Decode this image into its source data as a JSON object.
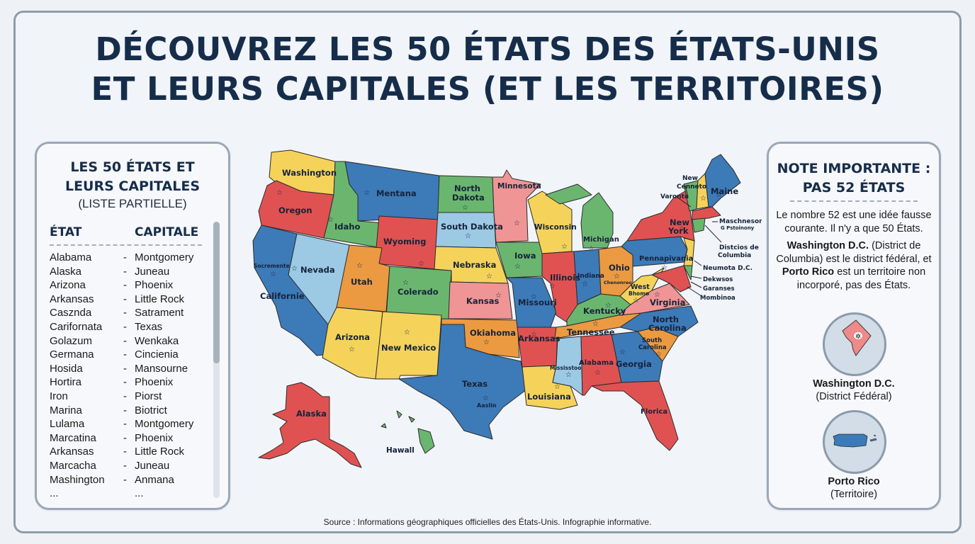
{
  "title": {
    "line1": "DÉCOUVREZ LES 50 ÉTATS DES ÉTATS-UNIS",
    "line2": "ET LEURS CAPITALES (ET LES TERRITOIRES)"
  },
  "left_panel": {
    "title_line1": "LES 50 ÉTATS ET",
    "title_line2": "LEURS CAPITALES",
    "subtitle": "(LISTE PARTIELLE)",
    "col_state": "ÉTAT",
    "col_capital": "CAPITALE",
    "separator": "-",
    "rows": [
      {
        "state": "Alabama",
        "capital": "Montgomery"
      },
      {
        "state": "Alaska",
        "capital": "Juneau"
      },
      {
        "state": "Arizona",
        "capital": "Phoenix"
      },
      {
        "state": "Arkansas",
        "capital": "Little Rock"
      },
      {
        "state": "Casznda",
        "capital": "Satrament"
      },
      {
        "state": "Carifornata",
        "capital": "Texas"
      },
      {
        "state": "Golazum",
        "capital": "Wenkaka"
      },
      {
        "state": "Germana",
        "capital": "Cincienia"
      },
      {
        "state": "Hosida",
        "capital": "Mansourne"
      },
      {
        "state": "Hortira",
        "capital": "Phoenix"
      },
      {
        "state": "Iron",
        "capital": "Piorst"
      },
      {
        "state": "Marina",
        "capital": "Biotrict"
      },
      {
        "state": "Lulama",
        "capital": "Montgomery"
      },
      {
        "state": "Marcatina",
        "capital": "Phoenix"
      },
      {
        "state": "Arkansas",
        "capital": "Little Rock"
      },
      {
        "state": "Marcacha",
        "capital": "Juneau"
      },
      {
        "state": "Mashington",
        "capital": "Anmana"
      },
      {
        "state": "...",
        "capital": "..."
      }
    ]
  },
  "right_panel": {
    "title_line1": "NOTE IMPORTANTE :",
    "title_line2": "PAS 52 ÉTATS",
    "p1": "Le nombre 52 est une idée fausse courante. Il n'y a que 50 États.",
    "p2_bold1": "Washington D.C.",
    "p2_mid": " (District de Columbia) est le district fédéral, et ",
    "p2_bold2": "Porto Rico",
    "p2_end": " est un territoire non incorporé, pas des États.",
    "dc_name": "Washington D.C.",
    "dc_desc": "(District Fédéral)",
    "pr_name": "Porto Rico",
    "pr_desc": "(Territoire)"
  },
  "map": {
    "colors": {
      "red": "#e05252",
      "blue": "#3d7ab8",
      "lightblue": "#9cc9e4",
      "green": "#6bb66f",
      "yellow": "#f5d35a",
      "orange": "#eb9a41",
      "pink": "#ef9595"
    },
    "labels": {
      "washington": "Washington",
      "oregon": "Oregon",
      "california": "Californie",
      "sacramento": "Socremente",
      "idaho": "Idaho",
      "nevada": "Nevada",
      "montana": "Mentana",
      "wyoming": "Wyoming",
      "utah": "Utah",
      "colorado": "Colerado",
      "arizona": "Arizona",
      "new_mexico": "New Mexico",
      "north_dakota_1": "North",
      "north_dakota_2": "Dakota",
      "south_dakota": "South Dakota",
      "nebraska": "Nebraska",
      "kansas": "Kansas",
      "oklahoma": "Okiahoma",
      "texas": "Texas",
      "austin": "Aaslin",
      "minnesota": "Minnesota",
      "iowa": "Iowa",
      "missouri": "Missouri",
      "arkansas": "Arkansas",
      "louisiana": "Louisiana",
      "wisconsin": "Wisconsin",
      "illinois": "Illinois",
      "michigan": "Michigan",
      "indiana": "Indiana",
      "ohio": "Ohio",
      "ohio_cap": "Chenonreo",
      "kentucky": "Kentucky",
      "tennessee": "Tennessee",
      "mississippi": "Mississtoo",
      "alabama": "Alabama",
      "georgia": "Georgia",
      "florida": "Florica",
      "south_carolina_1": "South",
      "south_carolina_2": "Carolina",
      "north_carolina_1": "North",
      "north_carolina_2": "Carolina",
      "virginia": "Virginia",
      "west_virginia_1": "West",
      "west_virginia_2": "Bhomo",
      "pennsylvania": "Pennapivania",
      "new_york_1": "New",
      "new_york_2": "York",
      "maine": "Maine",
      "vermont": "Varonta",
      "new_hampshire_1": "New",
      "new_hampshire_2": "Cenneto",
      "massachusetts_1": "Maschneson",
      "massachusetts_2": "G Pstoinony",
      "dc_callout_1": "Distcios de",
      "dc_callout_2": "Columbia",
      "nj_callout": "Neumota D.C.",
      "delaware_callout": "Dekwsos",
      "md_callout": "Garanses",
      "md2_callout": "Mombinoa",
      "alaska": "Alaska",
      "hawaii": "Hawall"
    }
  },
  "source": "Source : Informations géographiques officielles des États-Unis. Infographie informative."
}
